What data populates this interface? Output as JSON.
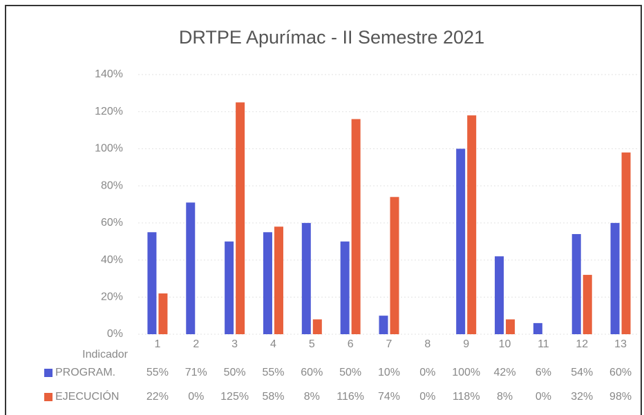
{
  "chart_data": {
    "type": "bar",
    "title": "DRTPE Apurímac - II Semestre 2021",
    "x_label": "Indicador",
    "categories": [
      "1",
      "2",
      "3",
      "4",
      "5",
      "6",
      "7",
      "8",
      "9",
      "10",
      "11",
      "12",
      "13"
    ],
    "series": [
      {
        "name": "PROGRAM.",
        "color": "#4f5bd5",
        "values": [
          55,
          71,
          50,
          55,
          60,
          50,
          10,
          0,
          100,
          42,
          6,
          54,
          60
        ],
        "value_labels": [
          "55%",
          "71%",
          "50%",
          "55%",
          "60%",
          "50%",
          "10%",
          "0%",
          "100%",
          "42%",
          "6%",
          "54%",
          "60%"
        ]
      },
      {
        "name": "EJECUCIÓN",
        "color": "#e8603c",
        "values": [
          22,
          0,
          125,
          58,
          8,
          116,
          74,
          0,
          118,
          8,
          0,
          32,
          98
        ],
        "value_labels": [
          "22%",
          "0%",
          "125%",
          "58%",
          "8%",
          "116%",
          "74%",
          "0%",
          "118%",
          "8%",
          "0%",
          "32%",
          "98%"
        ]
      }
    ],
    "ylim": [
      0,
      140
    ],
    "yticks": [
      {
        "value": 0,
        "label": "0%"
      },
      {
        "value": 20,
        "label": "20%"
      },
      {
        "value": 40,
        "label": "40%"
      },
      {
        "value": 60,
        "label": "60%"
      },
      {
        "value": 80,
        "label": "80%"
      },
      {
        "value": 100,
        "label": "100%"
      },
      {
        "value": 120,
        "label": "120%"
      },
      {
        "value": 140,
        "label": "140%"
      }
    ],
    "grid": true
  }
}
